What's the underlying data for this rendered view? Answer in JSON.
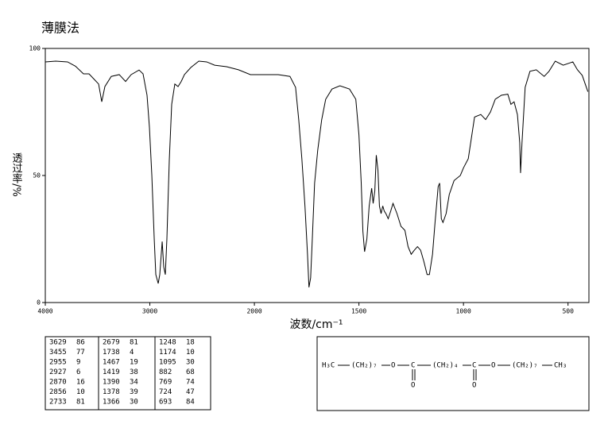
{
  "chart_data": {
    "type": "line",
    "title": "薄膜法",
    "x_label": "波数/cm⁻¹",
    "y_label": "透过率/%",
    "x": [
      4000,
      3901,
      3787,
      3711,
      3635,
      3582,
      3536,
      3490,
      3460,
      3430,
      3369,
      3293,
      3232,
      3179,
      3103,
      3065,
      3027,
      3004,
      2981,
      2958,
      2943,
      2920,
      2905,
      2882,
      2867,
      2852,
      2837,
      2814,
      2791,
      2761,
      2730,
      2700,
      2669,
      2608,
      2532,
      2456,
      2380,
      2266,
      2152,
      2038,
      1962,
      1886,
      1830,
      1803,
      1788,
      1773,
      1758,
      1746,
      1739,
      1731,
      1723,
      1712,
      1697,
      1678,
      1659,
      1629,
      1591,
      1545,
      1515,
      1500,
      1489,
      1481,
      1473,
      1462,
      1451,
      1439,
      1432,
      1424,
      1417,
      1409,
      1402,
      1394,
      1386,
      1379,
      1371,
      1360,
      1348,
      1337,
      1318,
      1299,
      1280,
      1265,
      1250,
      1235,
      1220,
      1205,
      1189,
      1174,
      1163,
      1148,
      1136,
      1121,
      1114,
      1106,
      1098,
      1083,
      1068,
      1045,
      1015,
      1000,
      977,
      947,
      917,
      894,
      871,
      848,
      818,
      788,
      773,
      758,
      742,
      731,
      727,
      720,
      705,
      682,
      652,
      614,
      591,
      561,
      523,
      477,
      455,
      432,
      405
    ],
    "values": [
      94.7,
      95,
      94.7,
      93,
      90,
      90,
      88,
      86,
      79,
      85,
      89,
      89.7,
      87,
      89.7,
      91.5,
      90,
      81.6,
      69,
      50,
      25,
      11,
      7.5,
      11,
      24,
      14,
      11,
      25,
      56,
      78,
      86,
      85,
      87,
      89.7,
      92.5,
      95,
      94.7,
      93.4,
      92.8,
      91.6,
      89.7,
      89.7,
      89.7,
      89,
      84.7,
      72,
      56.6,
      37.8,
      19,
      6,
      9.7,
      25,
      47,
      60,
      72,
      80,
      84,
      85.3,
      84,
      80,
      66,
      47,
      28,
      20,
      25,
      38,
      45,
      39,
      44,
      58,
      52,
      38,
      35,
      38,
      36,
      35,
      33,
      36,
      39,
      35,
      30,
      28.4,
      22,
      19,
      20.6,
      22,
      20.6,
      16,
      11,
      11,
      19,
      31.5,
      45.6,
      47,
      33,
      31.5,
      35,
      42.5,
      48,
      50,
      53,
      56.6,
      73,
      74,
      72,
      75,
      80,
      81.6,
      82,
      78,
      79,
      74,
      63,
      51,
      63,
      84.7,
      91,
      91.6,
      89,
      91,
      95,
      93.4,
      94.7,
      91.6,
      89.4,
      83
    ],
    "color": "#000000",
    "xlim": [
      4000,
      400
    ],
    "xticks": [
      4000,
      3000,
      2000,
      1500,
      1000,
      500
    ],
    "ylim": [
      0,
      100
    ],
    "yticks": [
      0,
      50,
      100
    ],
    "grid": false
  },
  "peak_table": [
    [
      3629,
      86,
      2679,
      81,
      1248,
      18
    ],
    [
      3455,
      77,
      1738,
      4,
      1174,
      10
    ],
    [
      2955,
      9,
      1467,
      19,
      1095,
      30
    ],
    [
      2927,
      6,
      1419,
      38,
      882,
      68
    ],
    [
      2870,
      16,
      1390,
      34,
      769,
      74
    ],
    [
      2856,
      10,
      1378,
      39,
      724,
      47
    ],
    [
      2733,
      81,
      1366,
      30,
      693,
      84
    ]
  ],
  "structure": {
    "labels": [
      "H₃C",
      "(CH₂)₇",
      "O",
      "C",
      "(CH₂)₄",
      "C",
      "O",
      "(CH₂)₇",
      "CH₃",
      "O",
      "O"
    ]
  }
}
